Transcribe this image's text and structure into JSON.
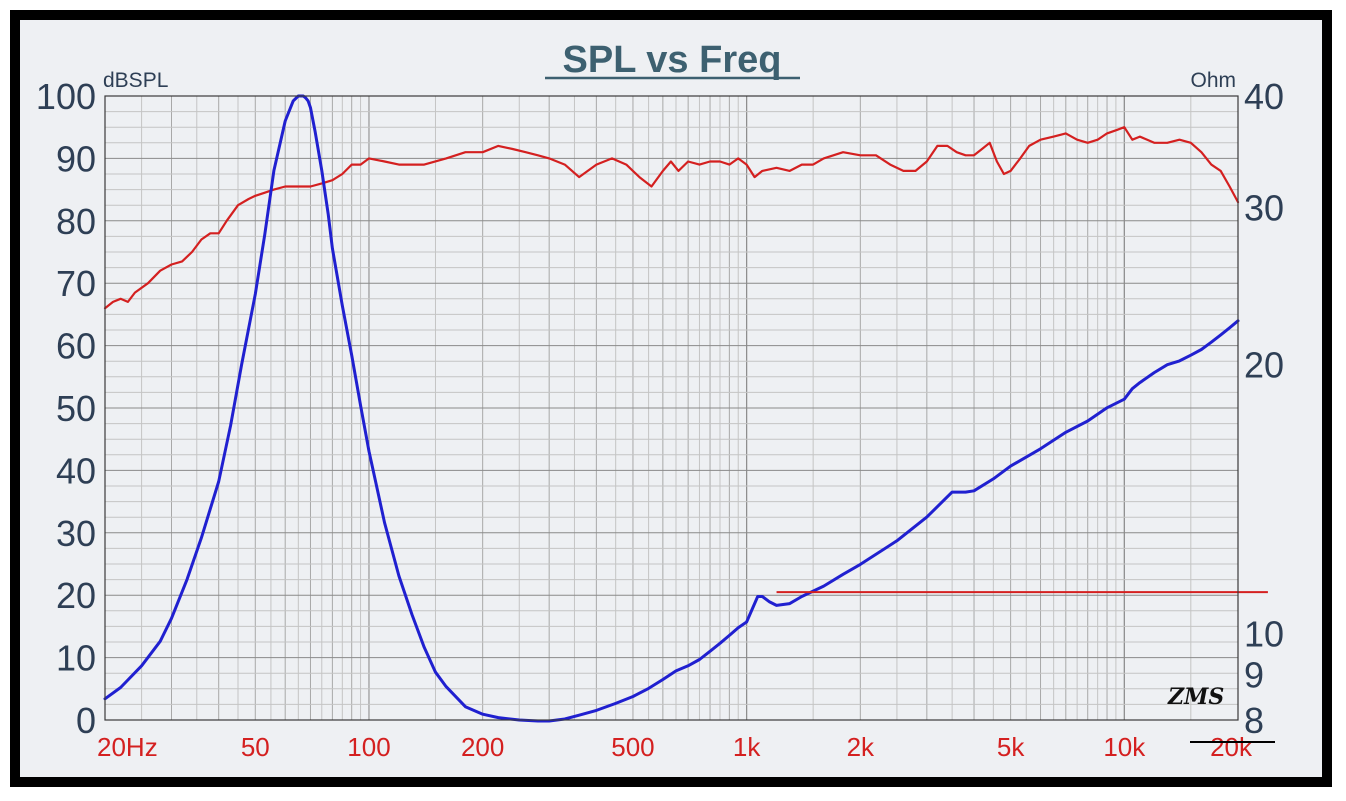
{
  "chart_data": {
    "type": "line",
    "title": "SPL vs Freq",
    "left_axis": {
      "unit_label": "dBSPL",
      "min": 0,
      "max": 100,
      "ticks": [
        "0",
        "10",
        "20",
        "30",
        "40",
        "50",
        "60",
        "70",
        "80",
        "90",
        "100"
      ]
    },
    "right_axis": {
      "unit_label": "Ohm",
      "scale": "log",
      "min": 8,
      "max": 40,
      "ticks": [
        {
          "value": 8,
          "label": "8"
        },
        {
          "value": 9,
          "label": "9"
        },
        {
          "value": 10,
          "label": "10"
        },
        {
          "value": 20,
          "label": "20"
        },
        {
          "value": 30,
          "label": "30"
        },
        {
          "value": 40,
          "label": "40"
        }
      ]
    },
    "x_axis": {
      "scale": "log",
      "min": 20,
      "max": 20000,
      "ticks": [
        {
          "value": 20,
          "label": "20Hz"
        },
        {
          "value": 50,
          "label": "50"
        },
        {
          "value": 100,
          "label": "100"
        },
        {
          "value": 200,
          "label": "200"
        },
        {
          "value": 500,
          "label": "500"
        },
        {
          "value": 1000,
          "label": "1k"
        },
        {
          "value": 2000,
          "label": "2k"
        },
        {
          "value": 5000,
          "label": "5k"
        },
        {
          "value": 10000,
          "label": "10k"
        },
        {
          "value": 20000,
          "label": "20k"
        }
      ]
    },
    "grid": true,
    "series": [
      {
        "axis": "left",
        "color": "#d42020",
        "x": [
          20,
          21,
          22,
          23,
          24,
          26,
          28,
          30,
          32,
          34,
          36,
          38,
          40,
          42,
          45,
          48,
          50,
          53,
          56,
          60,
          65,
          70,
          75,
          80,
          85,
          90,
          95,
          100,
          110,
          120,
          140,
          160,
          180,
          200,
          220,
          240,
          260,
          280,
          300,
          330,
          360,
          400,
          440,
          480,
          520,
          560,
          600,
          630,
          660,
          700,
          750,
          800,
          850,
          900,
          950,
          1000,
          1050,
          1100,
          1200,
          1300,
          1400,
          1500,
          1600,
          1800,
          2000,
          2200,
          2400,
          2600,
          2800,
          3000,
          3200,
          3400,
          3600,
          3800,
          4000,
          4200,
          4400,
          4600,
          4800,
          5000,
          5300,
          5600,
          6000,
          6500,
          7000,
          7500,
          8000,
          8500,
          9000,
          9500,
          10000,
          10500,
          11000,
          12000,
          13000,
          14000,
          15000,
          16000,
          17000,
          18000,
          19000,
          20000
        ],
        "values": [
          66,
          67,
          67.5,
          67,
          68.5,
          70,
          72,
          73,
          73.5,
          75,
          77,
          78,
          78,
          80,
          82.5,
          83.5,
          84,
          84.5,
          85,
          85.5,
          85.5,
          85.5,
          86,
          86.5,
          87.5,
          89,
          89,
          90,
          89.5,
          89,
          89,
          90,
          91,
          91,
          92,
          91.5,
          91,
          90.5,
          90,
          89,
          87,
          89,
          90,
          89,
          87,
          85.5,
          88,
          89.5,
          88,
          89.5,
          89,
          89.5,
          89.5,
          89,
          90,
          89,
          87,
          88,
          88.5,
          88,
          89,
          89,
          90,
          91,
          90.5,
          90.5,
          89,
          88,
          88,
          89.5,
          92,
          92,
          91,
          90.5,
          90.5,
          91.5,
          92.5,
          89.5,
          87.5,
          88,
          90,
          92,
          93,
          93.5,
          94,
          93,
          92.5,
          93,
          94,
          94.5,
          95,
          93,
          93.5,
          92.5,
          92.5,
          93,
          92.5,
          91,
          89,
          88,
          85.5,
          83
        ]
      },
      {
        "axis": "right",
        "color": "#2020d0",
        "x": [
          20,
          22,
          25,
          28,
          30,
          33,
          36,
          40,
          43,
          46,
          50,
          53,
          56,
          60,
          63,
          65,
          67,
          68,
          69,
          70,
          72,
          75,
          78,
          80,
          85,
          90,
          95,
          100,
          110,
          120,
          130,
          140,
          150,
          160,
          180,
          200,
          220,
          250,
          280,
          300,
          330,
          360,
          400,
          450,
          500,
          550,
          600,
          650,
          700,
          750,
          800,
          850,
          900,
          950,
          1000,
          1050,
          1070,
          1100,
          1150,
          1200,
          1300,
          1400,
          1600,
          1800,
          2000,
          2500,
          3000,
          3500,
          3800,
          4000,
          4500,
          5000,
          6000,
          7000,
          8000,
          9000,
          10000,
          10500,
          11000,
          12000,
          13000,
          14000,
          15000,
          16000,
          17000,
          18000,
          19000,
          20000
        ],
        "values": [
          8.45,
          8.7,
          9.2,
          9.8,
          10.4,
          11.5,
          12.8,
          14.8,
          17.1,
          20,
          24,
          28,
          33,
          37.5,
          39.5,
          40,
          40,
          39.8,
          39.5,
          38.8,
          36.5,
          33,
          29.5,
          27,
          23.3,
          20.5,
          18,
          16,
          13.3,
          11.6,
          10.5,
          9.65,
          9.05,
          8.72,
          8.28,
          8.12,
          8.05,
          8,
          7.98,
          7.98,
          8.02,
          8.1,
          8.2,
          8.35,
          8.5,
          8.68,
          8.88,
          9.08,
          9.2,
          9.35,
          9.55,
          9.75,
          9.95,
          10.15,
          10.3,
          10.8,
          11,
          11,
          10.85,
          10.75,
          10.8,
          11,
          11.3,
          11.65,
          11.95,
          12.7,
          13.5,
          14.4,
          14.4,
          14.45,
          14.9,
          15.4,
          16.1,
          16.8,
          17.3,
          17.9,
          18.3,
          18.8,
          19.1,
          19.6,
          20,
          20.2,
          20.5,
          20.8,
          21.2,
          21.6,
          22,
          22.4
        ]
      }
    ],
    "annotations": [
      {
        "type": "horizontal-line",
        "axis": "left",
        "value": 20.5,
        "x_from": 1200,
        "x_to": 24000,
        "color": "#d42020"
      }
    ],
    "watermark": "ZMS"
  }
}
